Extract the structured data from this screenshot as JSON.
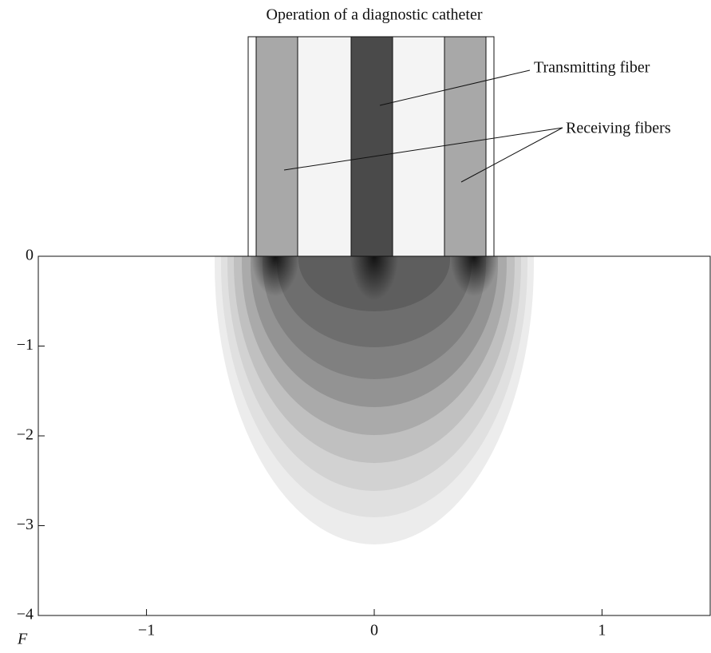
{
  "chart_data": {
    "type": "contour",
    "title": "Operation of a diagnostic catheter",
    "ylabel": "F",
    "annotations": [
      "Transmitting fiber",
      "Receiving fibers"
    ],
    "xlim": [
      -1.475,
      1.475
    ],
    "ylim": [
      -4,
      0
    ],
    "xticks": [
      {
        "value": -1,
        "label": "−1"
      },
      0,
      1
    ],
    "yticks": [
      0,
      {
        "value": -1,
        "label": "−1"
      },
      {
        "value": -2,
        "label": "−2"
      },
      {
        "value": -3,
        "label": "−3"
      },
      {
        "value": -4,
        "label": "−4"
      }
    ]
  }
}
